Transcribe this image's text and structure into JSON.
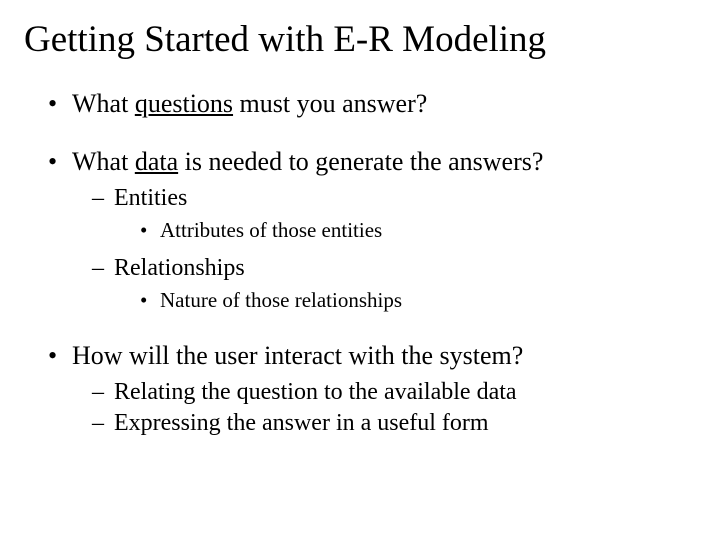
{
  "title": "Getting Started with E-R Modeling",
  "items": {
    "q1_pre": "What ",
    "q1_u": "questions",
    "q1_post": " must you answer?",
    "q2_pre": "What ",
    "q2_u": "data",
    "q2_post": " is needed to generate the answers?",
    "q2_sub1": "Entities",
    "q2_sub1_a": "Attributes of those entities",
    "q2_sub2": "Relationships",
    "q2_sub2_a": "Nature of those relationships",
    "q3": "How will the user interact with the system?",
    "q3_sub1": "Relating the question to the available data",
    "q3_sub2": "Expressing the answer in a useful form"
  },
  "colors": {
    "background": "#ffffff",
    "text": "#000000"
  },
  "typography": {
    "family": "Times New Roman",
    "title_size_pt": 28,
    "l1_size_pt": 20,
    "l2_size_pt": 18,
    "l3_size_pt": 16
  }
}
